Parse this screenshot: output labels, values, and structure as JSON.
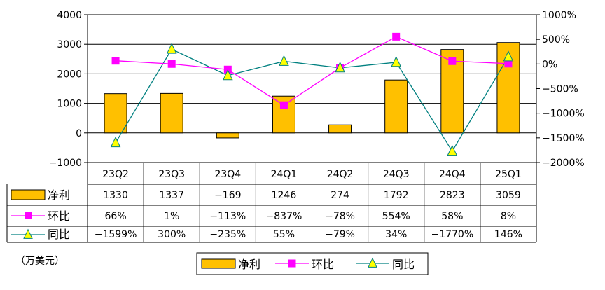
{
  "colors": {
    "bar": "#FFC000",
    "bar_stroke": "#000000",
    "mom_line": "#FF00FF",
    "mom_marker": "#FF00FF",
    "yoy_line": "#008080",
    "yoy_marker": "#FFFF00",
    "yoy_marker_stroke": "#008080",
    "grid": "#000000"
  },
  "unit_label": "（万美元）",
  "chart_data": {
    "type": "bar",
    "categories": [
      "23Q2",
      "23Q3",
      "23Q4",
      "24Q1",
      "24Q2",
      "24Q3",
      "24Q4",
      "25Q1"
    ],
    "left_axis": {
      "ticks": [
        "4000",
        "3000",
        "2000",
        "1000",
        "0",
        "−1000"
      ],
      "ylim": [
        -1000,
        4000
      ]
    },
    "right_axis": {
      "ticks": [
        "1000%",
        "500%",
        "0%",
        "−500%",
        "−1000%",
        "−1500%",
        "−2000%"
      ],
      "ylim": [
        -2000,
        1000
      ]
    },
    "series": [
      {
        "name": "净利",
        "kind": "bar",
        "axis": "left",
        "values": [
          1330,
          1337,
          -169,
          1246,
          274,
          1792,
          2823,
          3059
        ],
        "labels": [
          "1330",
          "1337",
          "−169",
          "1246",
          "274",
          "1792",
          "2823",
          "3059"
        ]
      },
      {
        "name": "环比",
        "kind": "line",
        "axis": "right",
        "marker": "square",
        "values": [
          66,
          1,
          -113,
          -837,
          -78,
          554,
          58,
          8
        ],
        "labels": [
          "66%",
          "1%",
          "−113%",
          "−837%",
          "−78%",
          "554%",
          "58%",
          "8%"
        ]
      },
      {
        "name": "同比",
        "kind": "line",
        "axis": "right",
        "marker": "triangle",
        "values": [
          -1599,
          300,
          -235,
          55,
          -79,
          34,
          -1770,
          146
        ],
        "labels": [
          "−1599%",
          "300%",
          "−235%",
          "55%",
          "−79%",
          "34%",
          "−1770%",
          "146%"
        ]
      }
    ],
    "grid": true,
    "legend": "bottom"
  }
}
